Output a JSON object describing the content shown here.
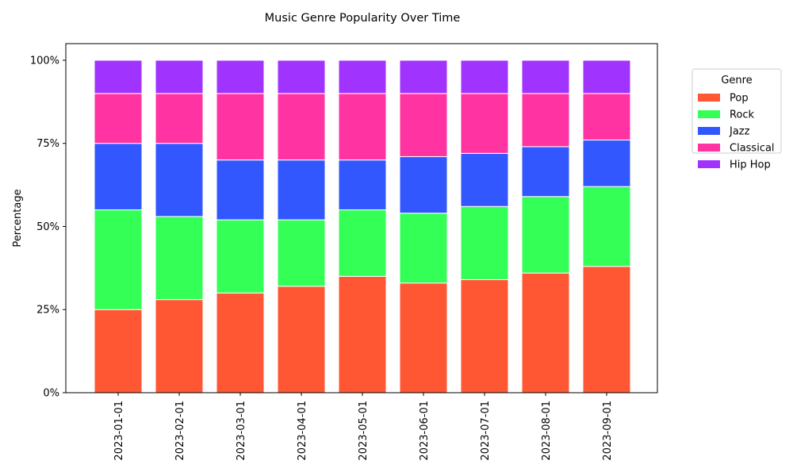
{
  "chart_data": {
    "type": "bar",
    "stacked": true,
    "title": "Music Genre Popularity Over Time",
    "xlabel": "",
    "ylabel": "Percentage",
    "ylim": [
      0,
      105
    ],
    "yticks": [
      0,
      25,
      50,
      75,
      100
    ],
    "ytick_labels": [
      "0%",
      "25%",
      "50%",
      "75%",
      "100%"
    ],
    "grid": false,
    "legend": {
      "title": "Genre",
      "placement": "outside-top-right"
    },
    "categories": [
      "2023-01-01",
      "2023-02-01",
      "2023-03-01",
      "2023-04-01",
      "2023-05-01",
      "2023-06-01",
      "2023-07-01",
      "2023-08-01",
      "2023-09-01"
    ],
    "series": [
      {
        "name": "Pop",
        "color": "#ff5733",
        "values": [
          25,
          28,
          30,
          32,
          35,
          33,
          34,
          36,
          38
        ]
      },
      {
        "name": "Rock",
        "color": "#33ff57",
        "values": [
          30,
          25,
          22,
          20,
          20,
          21,
          22,
          23,
          24
        ]
      },
      {
        "name": "Jazz",
        "color": "#3357ff",
        "values": [
          20,
          22,
          18,
          18,
          15,
          17,
          16,
          15,
          14
        ]
      },
      {
        "name": "Classical",
        "color": "#ff33a1",
        "values": [
          15,
          15,
          20,
          20,
          20,
          19,
          18,
          16,
          14
        ]
      },
      {
        "name": "Hip Hop",
        "color": "#a133ff",
        "values": [
          10,
          10,
          10,
          10,
          10,
          10,
          10,
          10,
          10
        ]
      }
    ]
  }
}
